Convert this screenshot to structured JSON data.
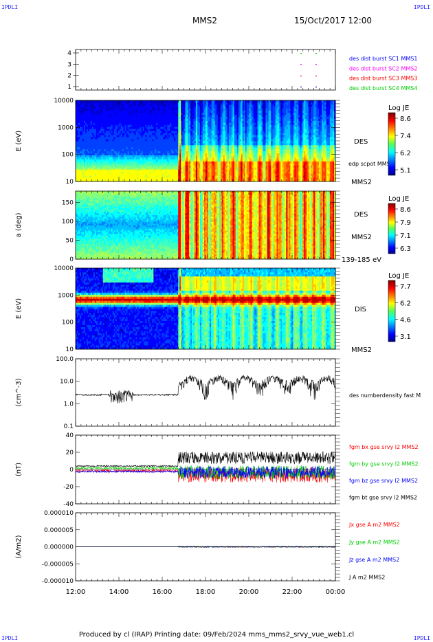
{
  "corners": {
    "tl": "IPDLI",
    "tr": "IPDLI",
    "bl": "IPDLI",
    "br": "IPDLI"
  },
  "header": {
    "spacecraft": "MMS2",
    "datetime": "15/Oct/2017 12:00"
  },
  "footer": "Produced by cl (IRAP)   Printing date: 09/Feb/2024   mms_mms2_srvy_vue_web1.cl",
  "colors": {
    "mms1": "#0000ff",
    "mms2": "#ff00ff",
    "mms3": "#ff0000",
    "mms4": "#00cc00",
    "bx": "#ff0000",
    "by": "#00cc00",
    "bz": "#0000ff",
    "bt": "#000000"
  },
  "chart_data": [
    {
      "type": "scatter",
      "id": "burst",
      "yticks": [
        "1",
        "2",
        "3",
        "4"
      ],
      "legend": [
        "des dist burst SC1 MMS1",
        "des dist burst SC2 MMS2",
        "des dist burst SC3 MMS3",
        "des dist burst SC4 MMS4"
      ]
    },
    {
      "type": "heatmap",
      "id": "des-energy",
      "ylabel": "E (eV)",
      "yticks": [
        "10",
        "100",
        "1000",
        "10000"
      ],
      "right_labels": [
        "DES",
        "edp scpot MMS2",
        "MMS2"
      ],
      "colorbar": {
        "title": "Log JE",
        "ticks": [
          "8.6",
          "7.4",
          "6.2",
          "5.1"
        ]
      }
    },
    {
      "type": "heatmap",
      "id": "des-pitch",
      "ylabel": "a (deg)",
      "yticks": [
        "0",
        "50",
        "100",
        "150"
      ],
      "right_labels": [
        "DES",
        "MMS2",
        "139-185 eV"
      ],
      "colorbar": {
        "title": "Log JE",
        "ticks": [
          "8.6",
          "7.9",
          "7.1",
          "6.3"
        ]
      }
    },
    {
      "type": "heatmap",
      "id": "dis-energy",
      "ylabel": "E (eV)",
      "yticks": [
        "10",
        "100",
        "1000",
        "10000"
      ],
      "right_labels": [
        "DIS",
        "MMS2"
      ],
      "colorbar": {
        "title": "Log JE",
        "ticks": [
          "7.7",
          "6.2",
          "4.6",
          "3.1"
        ]
      }
    },
    {
      "type": "line",
      "id": "density",
      "ylabel": "(cm^-3)",
      "yticks": [
        "0.1",
        "1.0",
        "10.0",
        "100.0"
      ],
      "legend": [
        "des numberdensity fast M"
      ]
    },
    {
      "type": "line",
      "id": "bfield",
      "ylabel": "(nT)",
      "yticks": [
        "-40",
        "-20",
        "0",
        "20",
        "40"
      ],
      "legend": [
        "fgm bx gse srvy l2 MMS2",
        "fgm by gse srvy l2 MMS2",
        "fgm bz gse srvy l2 MMS2",
        "fgm bt gse srvy l2 MMS2"
      ]
    },
    {
      "type": "line",
      "id": "current",
      "ylabel": "(A/m2)",
      "yticks": [
        "-0.000010",
        "-0.000005",
        "0.000000",
        "0.000005",
        "0.000010"
      ],
      "legend": [
        "Jx gse A m2 MMS2",
        "Jy gse A m2 MMS2",
        "Jz gse A m2 MMS2",
        "J A m2 MMS2"
      ]
    }
  ],
  "xaxis": {
    "ticks": [
      "12:00",
      "14:00",
      "16:00",
      "18:00",
      "20:00",
      "22:00",
      "00:00"
    ]
  }
}
